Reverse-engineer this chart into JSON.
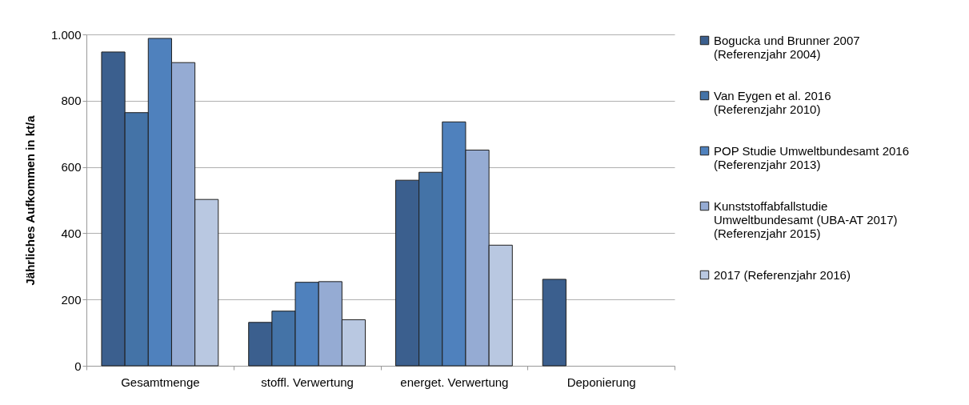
{
  "chart_data": {
    "type": "bar",
    "ylabel": "Jährliches Aufkommen in kt/a",
    "categories": [
      "Gesamtmenge",
      "stoffl. Verwertung",
      "energet. Verwertung",
      "Deponierung"
    ],
    "series": [
      {
        "name": "Bogucka und Brunner 2007\n(Referenzjahr 2004)",
        "color": "#3b5f8e",
        "values": [
          947,
          131,
          560,
          261
        ]
      },
      {
        "name": "Van Eygen et al. 2016\n(Referenzjahr 2010)",
        "color": "#4473a7",
        "values": [
          764,
          165,
          584,
          0
        ]
      },
      {
        "name": "POP Studie Umweltbundesamt 2016\n(Referenzjahr 2013)",
        "color": "#4f81bd",
        "values": [
          988,
          252,
          736,
          0
        ]
      },
      {
        "name": "Kunststoffabfallstudie\nUmweltbundesamt (UBA-AT 2017)\n(Referenzjahr 2015)",
        "color": "#95abd3",
        "values": [
          915,
          254,
          651,
          0
        ]
      },
      {
        "name": "2017 (Referenzjahr 2016)",
        "color": "#b9c8e1",
        "values": [
          502,
          139,
          364,
          0
        ]
      }
    ],
    "ylim": [
      0,
      1000
    ],
    "yticks": [
      0,
      200,
      400,
      600,
      800,
      {
        "value": 1000,
        "label": "1.000"
      }
    ],
    "grid": "y",
    "legend": "right"
  }
}
